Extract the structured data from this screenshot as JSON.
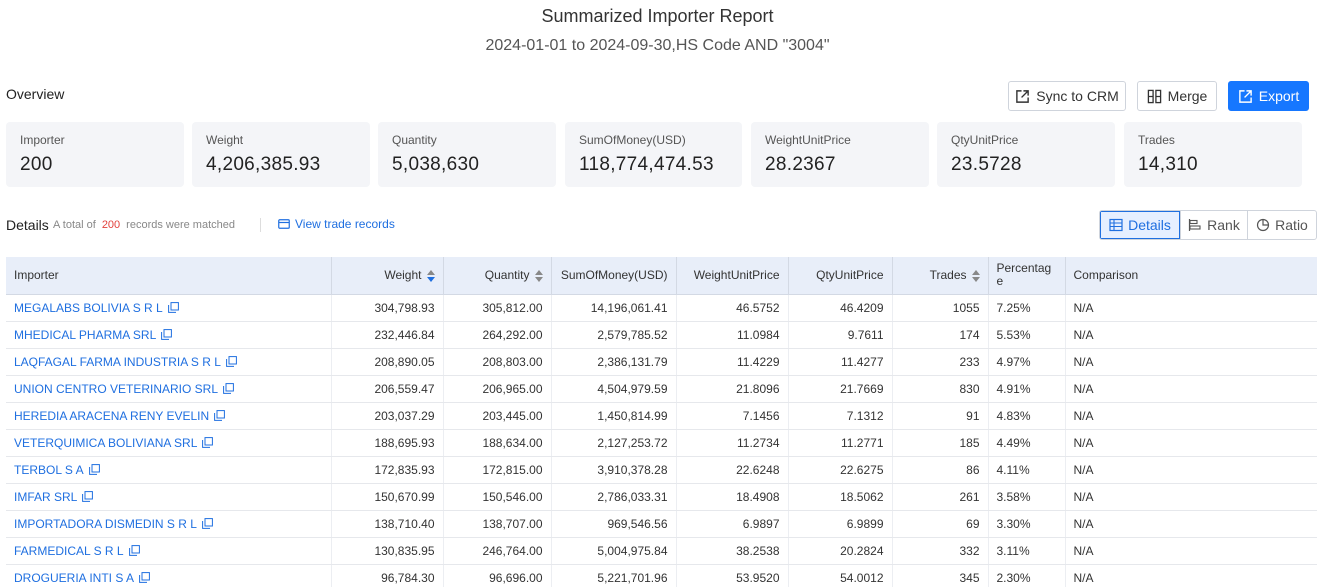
{
  "report": {
    "title": "Summarized Importer Report",
    "subtitle": "2024-01-01 to 2024-09-30,HS Code AND \"3004\""
  },
  "overview": {
    "label": "Overview",
    "buttons": {
      "sync": "Sync to CRM",
      "merge": "Merge",
      "export": "Export"
    },
    "cards": [
      {
        "label": "Importer",
        "value": "200"
      },
      {
        "label": "Weight",
        "value": "4,206,385.93"
      },
      {
        "label": "Quantity",
        "value": "5,038,630"
      },
      {
        "label": "SumOfMoney(USD)",
        "value": "118,774,474.53"
      },
      {
        "label": "WeightUnitPrice",
        "value": "28.2367"
      },
      {
        "label": "QtyUnitPrice",
        "value": "23.5728"
      },
      {
        "label": "Trades",
        "value": "14,310"
      }
    ]
  },
  "details": {
    "label": "Details",
    "total_prefix": "A total of",
    "total_count": "200",
    "total_suffix": "records were matched",
    "view_trades": "View trade records",
    "views": {
      "details": "Details",
      "rank": "Rank",
      "ratio": "Ratio"
    },
    "active_view": "Details"
  },
  "table": {
    "headers": {
      "importer": "Importer",
      "weight": "Weight",
      "quantity": "Quantity",
      "money": "SumOfMoney(USD)",
      "wup": "WeightUnitPrice",
      "qup": "QtyUnitPrice",
      "trades": "Trades",
      "percentage": "Percentag e",
      "comparison": "Comparison"
    },
    "rows": [
      {
        "importer": "MEGALABS BOLIVIA S R L",
        "weight": "304,798.93",
        "quantity": "305,812.00",
        "money": "14,196,061.41",
        "wup": "46.5752",
        "qup": "46.4209",
        "trades": "1055",
        "percentage": "7.25%",
        "comparison": "N/A"
      },
      {
        "importer": "MHEDICAL PHARMA SRL",
        "weight": "232,446.84",
        "quantity": "264,292.00",
        "money": "2,579,785.52",
        "wup": "11.0984",
        "qup": "9.7611",
        "trades": "174",
        "percentage": "5.53%",
        "comparison": "N/A"
      },
      {
        "importer": "LAQFAGAL FARMA INDUSTRIA S R L",
        "weight": "208,890.05",
        "quantity": "208,803.00",
        "money": "2,386,131.79",
        "wup": "11.4229",
        "qup": "11.4277",
        "trades": "233",
        "percentage": "4.97%",
        "comparison": "N/A"
      },
      {
        "importer": "UNION CENTRO VETERINARIO SRL",
        "weight": "206,559.47",
        "quantity": "206,965.00",
        "money": "4,504,979.59",
        "wup": "21.8096",
        "qup": "21.7669",
        "trades": "830",
        "percentage": "4.91%",
        "comparison": "N/A"
      },
      {
        "importer": "HEREDIA ARACENA RENY EVELIN",
        "weight": "203,037.29",
        "quantity": "203,445.00",
        "money": "1,450,814.99",
        "wup": "7.1456",
        "qup": "7.1312",
        "trades": "91",
        "percentage": "4.83%",
        "comparison": "N/A"
      },
      {
        "importer": "VETERQUIMICA BOLIVIANA SRL",
        "weight": "188,695.93",
        "quantity": "188,634.00",
        "money": "2,127,253.72",
        "wup": "11.2734",
        "qup": "11.2771",
        "trades": "185",
        "percentage": "4.49%",
        "comparison": "N/A"
      },
      {
        "importer": "TERBOL S A",
        "weight": "172,835.93",
        "quantity": "172,815.00",
        "money": "3,910,378.28",
        "wup": "22.6248",
        "qup": "22.6275",
        "trades": "86",
        "percentage": "4.11%",
        "comparison": "N/A"
      },
      {
        "importer": "IMFAR SRL",
        "weight": "150,670.99",
        "quantity": "150,546.00",
        "money": "2,786,033.31",
        "wup": "18.4908",
        "qup": "18.5062",
        "trades": "261",
        "percentage": "3.58%",
        "comparison": "N/A"
      },
      {
        "importer": "IMPORTADORA DISMEDIN S R L",
        "weight": "138,710.40",
        "quantity": "138,707.00",
        "money": "969,546.56",
        "wup": "6.9897",
        "qup": "6.9899",
        "trades": "69",
        "percentage": "3.30%",
        "comparison": "N/A"
      },
      {
        "importer": "FARMEDICAL S R L",
        "weight": "130,835.95",
        "quantity": "246,764.00",
        "money": "5,004,975.84",
        "wup": "38.2538",
        "qup": "20.2824",
        "trades": "332",
        "percentage": "3.11%",
        "comparison": "N/A"
      },
      {
        "importer": "DROGUERIA INTI S A",
        "weight": "96,784.30",
        "quantity": "96,696.00",
        "money": "5,221,701.96",
        "wup": "53.9520",
        "qup": "54.0012",
        "trades": "345",
        "percentage": "2.30%",
        "comparison": "N/A"
      }
    ]
  }
}
